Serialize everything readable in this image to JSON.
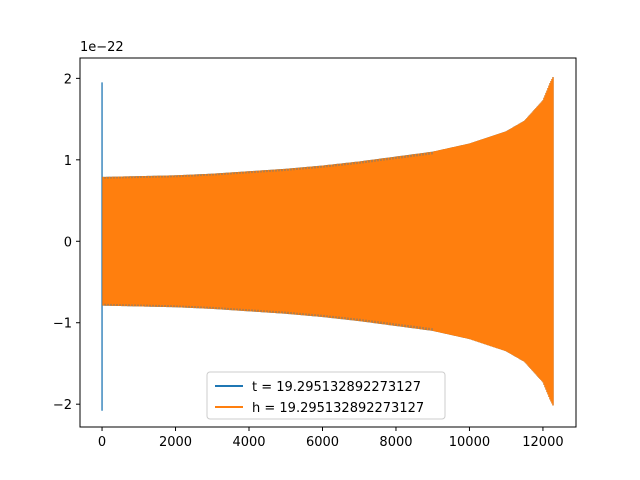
{
  "chart_data": {
    "type": "line",
    "title": "",
    "xlabel": "",
    "ylabel": "",
    "y_offset_label": "1e−22",
    "xlim": [
      -600,
      12900
    ],
    "ylim": [
      -2.28,
      2.25
    ],
    "x_ticks": [
      0,
      2000,
      4000,
      6000,
      8000,
      10000,
      12000
    ],
    "x_tick_labels": [
      "0",
      "2000",
      "4000",
      "6000",
      "8000",
      "10000",
      "12000"
    ],
    "y_ticks": [
      -2,
      -1,
      0,
      1,
      2
    ],
    "y_tick_labels": [
      "−2",
      "−1",
      "0",
      "1",
      "2"
    ],
    "grid": false,
    "legend_position": "lower-center",
    "series": [
      {
        "name": "t = 19.295132892273127",
        "color": "#1f77b4",
        "description_points": {
          "x": [
            0,
            12290
          ],
          "spike_at_start": [
            1.95,
            -2.08
          ],
          "end_amplitude": 2.03
        }
      },
      {
        "name": "h = 19.295132892273127",
        "color": "#ff7f0e",
        "envelope_x": [
          0,
          1000,
          2000,
          3000,
          4000,
          5000,
          6000,
          7000,
          8000,
          9000,
          10000,
          11000,
          11500,
          12000,
          12200,
          12290
        ],
        "envelope_amplitude": [
          0.79,
          0.8,
          0.81,
          0.83,
          0.86,
          0.89,
          0.93,
          0.98,
          1.04,
          1.1,
          1.2,
          1.35,
          1.48,
          1.73,
          1.95,
          2.03
        ]
      }
    ]
  }
}
